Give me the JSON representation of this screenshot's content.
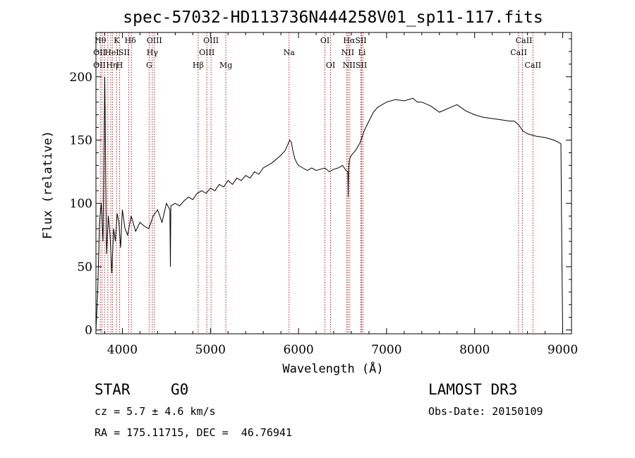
{
  "chart_data": {
    "type": "line",
    "title": "spec-57032-HD113736N444258V01_sp11-117.fits",
    "xlabel": "Wavelength (Å)",
    "ylabel": "Flux (relative)",
    "xlim": [
      3700,
      9100
    ],
    "ylim": [
      -3,
      235
    ],
    "x_ticks": [
      4000,
      5000,
      6000,
      7000,
      8000,
      9000
    ],
    "y_ticks": [
      0,
      50,
      100,
      150,
      200
    ],
    "grid": false,
    "legend": "none",
    "series": [
      {
        "x": [
          3700,
          3720,
          3740,
          3760,
          3780,
          3800,
          3820,
          3840,
          3860,
          3880,
          3900,
          3920,
          3940,
          3960,
          3980,
          4000,
          4030,
          4060,
          4100,
          4150,
          4200,
          4250,
          4300,
          4350,
          4400,
          4450,
          4500,
          4540,
          4545,
          4550,
          4600,
          4650,
          4700,
          4750,
          4800,
          4850,
          4900,
          4950,
          5000,
          5050,
          5100,
          5150,
          5200,
          5250,
          5300,
          5350,
          5400,
          5450,
          5500,
          5550,
          5600,
          5650,
          5700,
          5750,
          5800,
          5850,
          5900,
          5920,
          5940,
          5960,
          5980,
          6000,
          6050,
          6100,
          6150,
          6200,
          6250,
          6300,
          6350,
          6400,
          6450,
          6500,
          6540,
          6560,
          6565,
          6570,
          6580,
          6600,
          6650,
          6700,
          6750,
          6800,
          6850,
          6900,
          6950,
          7000,
          7100,
          7200,
          7300,
          7350,
          7400,
          7500,
          7600,
          7700,
          7800,
          7900,
          8000,
          8100,
          8200,
          8300,
          8400,
          8450,
          8500,
          8550,
          8600,
          8700,
          8800,
          8900,
          8960,
          8980,
          8990,
          9000
        ],
        "y": [
          0,
          30,
          85,
          100,
          70,
          200,
          60,
          90,
          75,
          45,
          80,
          70,
          92,
          85,
          65,
          95,
          80,
          75,
          90,
          78,
          85,
          82,
          80,
          90,
          95,
          85,
          100,
          95,
          50,
          98,
          100,
          98,
          102,
          105,
          103,
          108,
          110,
          108,
          112,
          110,
          115,
          113,
          118,
          115,
          120,
          118,
          122,
          120,
          125,
          123,
          128,
          130,
          132,
          135,
          138,
          142,
          150,
          148,
          140,
          135,
          132,
          130,
          128,
          126,
          128,
          126,
          127,
          128,
          125,
          127,
          128,
          130,
          126,
          125,
          105,
          128,
          135,
          138,
          142,
          148,
          158,
          165,
          172,
          176,
          178,
          180,
          182,
          181,
          183,
          180,
          180,
          177,
          172,
          175,
          178,
          173,
          170,
          168,
          167,
          166,
          165,
          165,
          162,
          157,
          155,
          153,
          152,
          150,
          148,
          147,
          60,
          0
        ]
      }
    ],
    "lines": [
      {
        "x": 3750,
        "labels": [
          "Hθ",
          "OII",
          "OII"
        ]
      },
      {
        "x": 3770,
        "labels": []
      },
      {
        "x": 3798,
        "labels": []
      },
      {
        "x": 3835,
        "labels": []
      },
      {
        "x": 3869,
        "labels": []
      },
      {
        "x": 3889,
        "labels": [
          "Hη"
        ]
      },
      {
        "x": 3934,
        "labels": [
          "K",
          "HeI"
        ]
      },
      {
        "x": 3969,
        "labels": [
          "H"
        ]
      },
      {
        "x": 4072,
        "labels": [
          "SII"
        ]
      },
      {
        "x": 4102,
        "labels": [
          "Hδ"
        ]
      },
      {
        "x": 4304,
        "labels": [
          "G"
        ]
      },
      {
        "x": 4340,
        "labels": [
          "Hγ"
        ]
      },
      {
        "x": 4363,
        "labels": [
          "OIII"
        ]
      },
      {
        "x": 4861,
        "labels": [
          "Hβ"
        ]
      },
      {
        "x": 4959,
        "labels": [
          "OIII"
        ]
      },
      {
        "x": 5007,
        "labels": [
          "OIII"
        ]
      },
      {
        "x": 5175,
        "labels": [
          "Mg"
        ]
      },
      {
        "x": 5893,
        "labels": [
          "Na"
        ]
      },
      {
        "x": 6300,
        "labels": [
          "OI"
        ]
      },
      {
        "x": 6364,
        "labels": [
          "OI"
        ]
      },
      {
        "x": 6548,
        "labels": [
          "NII"
        ]
      },
      {
        "x": 6563,
        "labels": [
          "Hα"
        ]
      },
      {
        "x": 6583,
        "labels": [
          "NII"
        ]
      },
      {
        "x": 6708,
        "labels": [
          "Li"
        ]
      },
      {
        "x": 6716,
        "labels": [
          "SII"
        ]
      },
      {
        "x": 6731,
        "labels": [
          "SII"
        ]
      },
      {
        "x": 8498,
        "labels": [
          "CaII"
        ]
      },
      {
        "x": 8542,
        "labels": [
          "CaII"
        ]
      },
      {
        "x": 8662,
        "labels": [
          "CaII"
        ]
      }
    ],
    "line_labels": [
      {
        "text": "Hθ",
        "x": 3750,
        "row": 0
      },
      {
        "text": "K",
        "x": 3934,
        "row": 0
      },
      {
        "text": "Hδ",
        "x": 4090,
        "row": 0
      },
      {
        "text": "OIII",
        "x": 4363,
        "row": 0
      },
      {
        "text": "OIII",
        "x": 5007,
        "row": 0
      },
      {
        "text": "OI",
        "x": 6300,
        "row": 0
      },
      {
        "text": "HαSII",
        "x": 6640,
        "row": 0
      },
      {
        "text": "CaII",
        "x": 8560,
        "row": 0
      },
      {
        "text": "OII",
        "x": 3740,
        "row": 1
      },
      {
        "text": "HeI",
        "x": 3880,
        "row": 1
      },
      {
        "text": "SII",
        "x": 4020,
        "row": 1
      },
      {
        "text": "Hγ",
        "x": 4340,
        "row": 1
      },
      {
        "text": "OIII",
        "x": 4959,
        "row": 1
      },
      {
        "text": "Na",
        "x": 5893,
        "row": 1
      },
      {
        "text": "NII",
        "x": 6560,
        "row": 1
      },
      {
        "text": "Li",
        "x": 6720,
        "row": 1
      },
      {
        "text": "CaII",
        "x": 8500,
        "row": 1
      },
      {
        "text": "OII",
        "x": 3740,
        "row": 2
      },
      {
        "text": "Hη",
        "x": 3880,
        "row": 2
      },
      {
        "text": "H",
        "x": 3969,
        "row": 2
      },
      {
        "text": "G",
        "x": 4304,
        "row": 2
      },
      {
        "text": "Hβ",
        "x": 4861,
        "row": 2
      },
      {
        "text": "Mg",
        "x": 5175,
        "row": 2
      },
      {
        "text": "OI",
        "x": 6364,
        "row": 2
      },
      {
        "text": "NIISII",
        "x": 6640,
        "row": 2
      },
      {
        "text": "CaII",
        "x": 8662,
        "row": 2
      }
    ],
    "colors": {
      "spectrum": "#000000",
      "lines": "#b22222",
      "axes": "#000000"
    }
  },
  "info": {
    "object_class": "STAR",
    "subclass": "G0",
    "survey": "LAMOST DR3",
    "redshift": "cz = 5.7 ± 4.6 km/s",
    "obs_date": "Obs-Date: 20150109",
    "coords": "RA = 175.11715, DEC =  46.76941"
  }
}
